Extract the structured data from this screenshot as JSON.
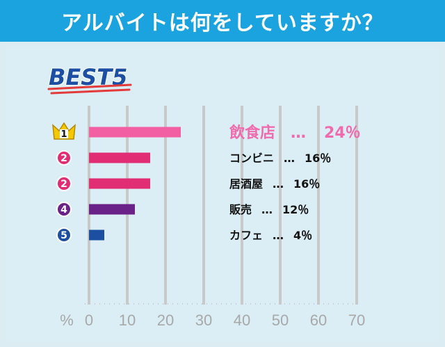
{
  "header": {
    "title": "アルバイトは何をしていますか？"
  },
  "badge": {
    "text": "BEST5"
  },
  "colors": {
    "header_bg": "#1aa3df",
    "background": "#dcecf3",
    "grid": "#c9c9c9",
    "bar_1": "#f35fa3",
    "bar_2": "#e02d74",
    "bar_4": "#6b2288",
    "bar_5": "#1d4fa0",
    "crown": "#f3c800"
  },
  "chart_data": {
    "type": "bar",
    "orientation": "horizontal",
    "unit_label": "%",
    "xlim": [
      0,
      70
    ],
    "x_ticks": [
      "0",
      "10",
      "20",
      "30",
      "40",
      "50",
      "60",
      "70"
    ],
    "grid": true,
    "items": [
      {
        "rank": "1",
        "label": "飲食店",
        "separator": "…",
        "value_text": "24％",
        "value": 24,
        "color": "#f35fa3",
        "icon": "crown-icon"
      },
      {
        "rank": "2",
        "label": "コンビニ",
        "separator": "…",
        "value_text": "16％",
        "value": 16,
        "color": "#e02d74",
        "icon": "rank-circle-icon"
      },
      {
        "rank": "2",
        "label": "居酒屋",
        "separator": "…",
        "value_text": "16％",
        "value": 16,
        "color": "#e02d74",
        "icon": "rank-circle-icon"
      },
      {
        "rank": "4",
        "label": "販売",
        "separator": "…",
        "value_text": "12％",
        "value": 12,
        "color": "#6b2288",
        "icon": "rank-circle-icon"
      },
      {
        "rank": "5",
        "label": "カフェ",
        "separator": "…",
        "value_text": "4％",
        "value": 4,
        "color": "#1d4fa0",
        "icon": "rank-circle-icon"
      }
    ]
  }
}
